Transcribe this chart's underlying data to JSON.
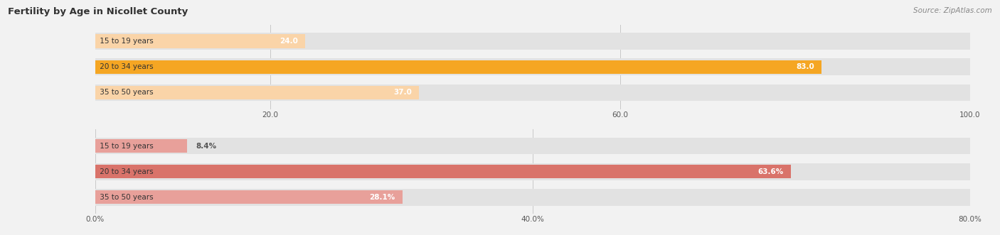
{
  "title": "Fertility by Age in Nicollet County",
  "source_text": "Source: ZipAtlas.com",
  "top_chart": {
    "categories": [
      "15 to 19 years",
      "20 to 34 years",
      "35 to 50 years"
    ],
    "values": [
      24.0,
      83.0,
      37.0
    ],
    "bar_color": "#F5A623",
    "bar_color_light": "#FAD4A8",
    "xlim": [
      0,
      100
    ],
    "xticks": [
      20.0,
      60.0,
      100.0
    ],
    "xtick_labels": [
      "20.0",
      "60.0",
      "100.0"
    ]
  },
  "bottom_chart": {
    "categories": [
      "15 to 19 years",
      "20 to 34 years",
      "35 to 50 years"
    ],
    "values": [
      8.4,
      63.6,
      28.1
    ],
    "bar_color": "#D9736A",
    "bar_color_light": "#E8A09A",
    "xlim": [
      0,
      80
    ],
    "xticks": [
      0.0,
      40.0,
      80.0
    ],
    "xtick_labels": [
      "0.0%",
      "40.0%",
      "80.0%"
    ]
  },
  "fig_bg": "#f2f2f2",
  "bar_bg": "#e2e2e2",
  "bar_height": 0.54,
  "title_fontsize": 9.5,
  "tick_fontsize": 7.5,
  "label_fontsize": 7.5,
  "value_fontsize": 7.5
}
